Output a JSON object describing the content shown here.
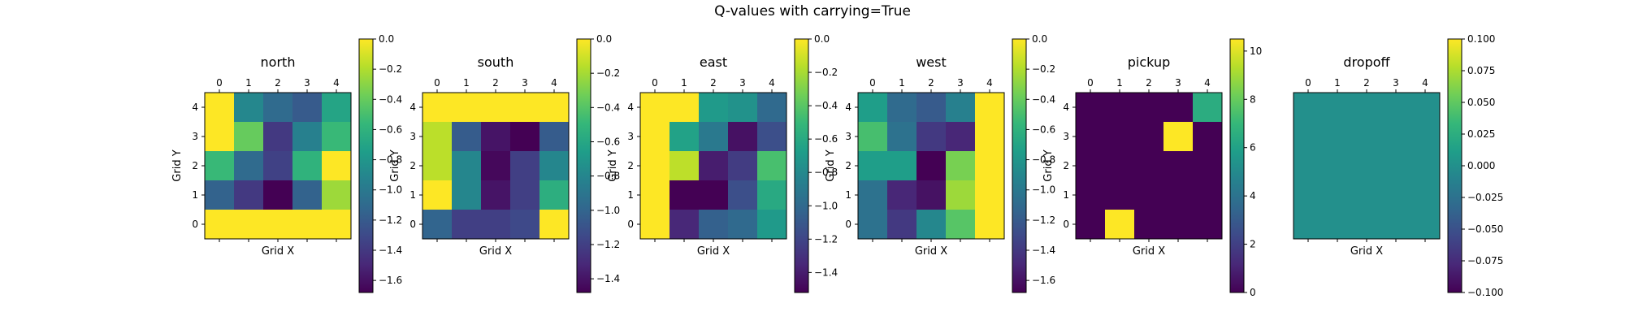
{
  "title": "Q-values with carrying=True",
  "colormap": [
    "#440154",
    "#482878",
    "#3e4989",
    "#31688e",
    "#26828e",
    "#1f9e89",
    "#35b779",
    "#6ece58",
    "#b5de2b",
    "#fde725"
  ],
  "chart_data": [
    {
      "type": "heatmap",
      "title": "north",
      "xlabel": "Grid X",
      "ylabel": "Grid Y",
      "x_ticks": [
        "0",
        "1",
        "2",
        "3",
        "4"
      ],
      "y_ticks": [
        "0",
        "1",
        "2",
        "3",
        "4"
      ],
      "vmin": -1.68,
      "vmax": 0.0,
      "colorbar_ticks": [
        0.0,
        -0.2,
        -0.4,
        -0.6,
        -0.8,
        -1.0,
        -1.2,
        -1.4,
        -1.6
      ],
      "colorbar_labels": [
        "0.0",
        "−0.2",
        "−0.4",
        "−0.6",
        "−0.8",
        "−1.0",
        "−1.2",
        "−1.4",
        "−1.6"
      ],
      "rows_top_to_bottom_y": [
        4,
        3,
        2,
        1,
        0
      ],
      "values": [
        [
          0.0,
          -0.9,
          -1.1,
          -1.2,
          -0.7
        ],
        [
          0.0,
          -0.4,
          -1.4,
          -0.95,
          -0.55
        ],
        [
          -0.55,
          -1.1,
          -1.35,
          -0.6,
          0.0
        ],
        [
          -1.15,
          -1.4,
          -1.68,
          -1.15,
          -0.25
        ],
        [
          0.0,
          0.0,
          0.0,
          0.0,
          0.0
        ]
      ]
    },
    {
      "type": "heatmap",
      "title": "south",
      "xlabel": "Grid X",
      "ylabel": "Grid Y",
      "x_ticks": [
        "0",
        "1",
        "2",
        "3",
        "4"
      ],
      "y_ticks": [
        "0",
        "1",
        "2",
        "3",
        "4"
      ],
      "vmin": -1.48,
      "vmax": 0.0,
      "colorbar_ticks": [
        0.0,
        -0.2,
        -0.4,
        -0.6,
        -0.8,
        -1.0,
        -1.2,
        -1.4
      ],
      "colorbar_labels": [
        "0.0",
        "−0.2",
        "−0.4",
        "−0.6",
        "−0.8",
        "−1.0",
        "−1.2",
        "−1.4"
      ],
      "rows_top_to_bottom_y": [
        4,
        3,
        2,
        1,
        0
      ],
      "values": [
        [
          0.0,
          0.0,
          0.0,
          0.0,
          0.0
        ],
        [
          -0.15,
          -1.05,
          -1.4,
          -1.48,
          -1.05
        ],
        [
          -0.15,
          -0.8,
          -1.45,
          -1.2,
          -0.8
        ],
        [
          0.0,
          -0.8,
          -1.4,
          -1.2,
          -0.55
        ],
        [
          -1.0,
          -1.2,
          -1.2,
          -1.15,
          0.0
        ]
      ]
    },
    {
      "type": "heatmap",
      "title": "east",
      "xlabel": "Grid X",
      "ylabel": "Grid Y",
      "x_ticks": [
        "0",
        "1",
        "2",
        "3",
        "4"
      ],
      "y_ticks": [
        "0",
        "1",
        "2",
        "3",
        "4"
      ],
      "vmin": -1.52,
      "vmax": 0.0,
      "colorbar_ticks": [
        0.0,
        -0.2,
        -0.4,
        -0.6,
        -0.8,
        -1.0,
        -1.2,
        -1.4
      ],
      "colorbar_labels": [
        "0.0",
        "−0.2",
        "−0.4",
        "−0.6",
        "−0.8",
        "−1.0",
        "−1.2",
        "−1.4"
      ],
      "rows_top_to_bottom_y": [
        4,
        3,
        2,
        1,
        0
      ],
      "values": [
        [
          0.0,
          0.0,
          -0.7,
          -0.75,
          -1.0
        ],
        [
          0.0,
          -0.65,
          -0.9,
          -1.45,
          -1.15
        ],
        [
          0.0,
          -0.15,
          -1.4,
          -1.25,
          -0.45
        ],
        [
          0.0,
          -1.52,
          -1.52,
          -1.15,
          -0.6
        ],
        [
          0.0,
          -1.35,
          -1.05,
          -1.0,
          -0.7
        ]
      ]
    },
    {
      "type": "heatmap",
      "title": "west",
      "xlabel": "Grid X",
      "ylabel": "Grid Y",
      "x_ticks": [
        "0",
        "1",
        "2",
        "3",
        "4"
      ],
      "y_ticks": [
        "0",
        "1",
        "2",
        "3",
        "4"
      ],
      "vmin": -1.68,
      "vmax": 0.0,
      "colorbar_ticks": [
        0.0,
        -0.2,
        -0.4,
        -0.6,
        -0.8,
        -1.0,
        -1.2,
        -1.4,
        -1.6
      ],
      "colorbar_labels": [
        "0.0",
        "−0.2",
        "−0.4",
        "−0.6",
        "−0.8",
        "−1.0",
        "−1.2",
        "−1.4",
        "−1.6"
      ],
      "rows_top_to_bottom_y": [
        4,
        3,
        2,
        1,
        0
      ],
      "values": [
        [
          -0.75,
          -1.1,
          -1.2,
          -0.95,
          0.0
        ],
        [
          -0.5,
          -1.05,
          -1.4,
          -1.5,
          0.0
        ],
        [
          -0.75,
          -0.75,
          -1.68,
          -0.35,
          0.0
        ],
        [
          -1.05,
          -1.5,
          -1.6,
          -0.25,
          0.0
        ],
        [
          -1.05,
          -1.4,
          -0.9,
          -0.45,
          0.0
        ]
      ]
    },
    {
      "type": "heatmap",
      "title": "pickup",
      "xlabel": "Grid X",
      "ylabel": "Grid Y",
      "x_ticks": [
        "0",
        "1",
        "2",
        "3",
        "4"
      ],
      "y_ticks": [
        "0",
        "1",
        "2",
        "3",
        "4"
      ],
      "vmin": 0.0,
      "vmax": 10.5,
      "colorbar_ticks": [
        10,
        8,
        6,
        4,
        2,
        0
      ],
      "colorbar_labels": [
        "10",
        "8",
        "6",
        "4",
        "2",
        "0"
      ],
      "rows_top_to_bottom_y": [
        4,
        3,
        2,
        1,
        0
      ],
      "values": [
        [
          0,
          0,
          0,
          0,
          6.5
        ],
        [
          0,
          0,
          0,
          10.5,
          0
        ],
        [
          0,
          0,
          0,
          0,
          0
        ],
        [
          0,
          0,
          0,
          0,
          0
        ],
        [
          0,
          10.5,
          0,
          0,
          0
        ]
      ]
    },
    {
      "type": "heatmap",
      "title": "dropoff",
      "xlabel": "Grid X",
      "ylabel": "",
      "x_ticks": [
        "0",
        "1",
        "2",
        "3",
        "4"
      ],
      "y_ticks": [],
      "vmin": -0.1,
      "vmax": 0.1,
      "colorbar_ticks": [
        0.1,
        0.075,
        0.05,
        0.025,
        0.0,
        -0.025,
        -0.05,
        -0.075,
        -0.1
      ],
      "colorbar_labels": [
        "0.100",
        "0.075",
        "0.050",
        "0.025",
        "0.000",
        "−0.025",
        "−0.050",
        "−0.075",
        "−0.100"
      ],
      "rows_top_to_bottom_y": [
        4,
        3,
        2,
        1,
        0
      ],
      "values": [
        [
          0,
          0,
          0,
          0,
          0
        ],
        [
          0,
          0,
          0,
          0,
          0
        ],
        [
          0,
          0,
          0,
          0,
          0
        ],
        [
          0,
          0,
          0,
          0,
          0
        ],
        [
          0,
          0,
          0,
          0,
          0
        ]
      ]
    }
  ]
}
